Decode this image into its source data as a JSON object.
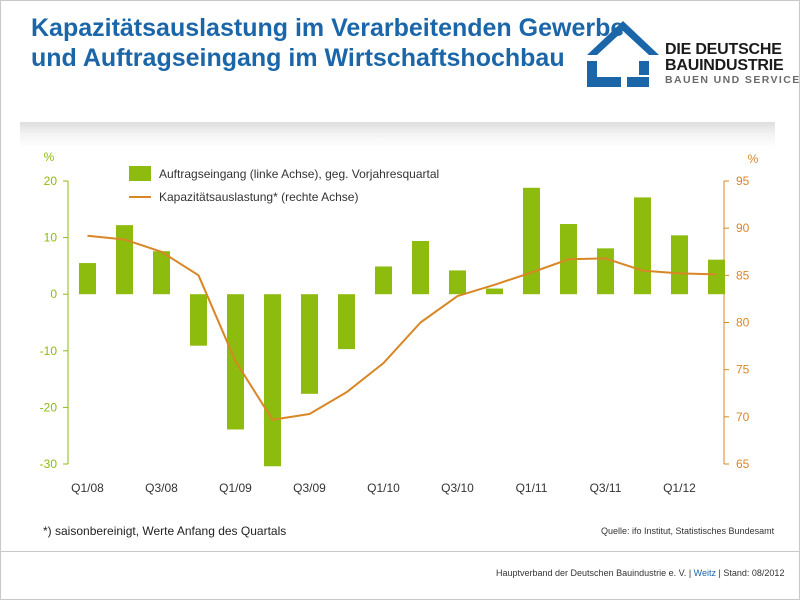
{
  "header": {
    "title_line1": "Kapazitätsauslastung im Verarbeitenden Gewerbe",
    "title_line2": "und Auftragseingang im Wirtschaftshochbau"
  },
  "logo": {
    "line1": "DIE DEUTSCHE",
    "line2": "BAUINDUSTRIE",
    "line3": "BAUEN UND SERVICES"
  },
  "colors": {
    "title": "#1a66a8",
    "bars": "#8dbb0e",
    "line": "#d98625",
    "left_axis": "#8dbb0e",
    "right_axis": "#d98625",
    "logo": "#1a66a8"
  },
  "chart_data": {
    "type": "bar",
    "left_unit": "%",
    "right_unit": "%",
    "left_ylim": [
      -30,
      20
    ],
    "left_yticks": [
      20,
      10,
      0,
      -10,
      -20,
      -30
    ],
    "right_ylim": [
      65,
      95
    ],
    "right_yticks": [
      95,
      90,
      85,
      80,
      75,
      70,
      65
    ],
    "x_tick_labels": [
      "Q1/08",
      "Q3/08",
      "Q1/09",
      "Q3/09",
      "Q1/10",
      "Q3/10",
      "Q1/11",
      "Q3/11",
      "Q1/12"
    ],
    "categories": [
      "Q1/08",
      "Q2/08",
      "Q3/08",
      "Q4/08",
      "Q1/09",
      "Q2/09",
      "Q3/09",
      "Q4/09",
      "Q1/10",
      "Q2/10",
      "Q3/10",
      "Q4/10",
      "Q1/11",
      "Q2/11",
      "Q3/11",
      "Q4/11",
      "Q1/12",
      "Q2/12"
    ],
    "legend_position": "top-left",
    "series": [
      {
        "name": "Auftragseingang (linke Achse), geg. Vorjahresquartal",
        "type": "bar",
        "axis": "left",
        "values": [
          5.5,
          12.2,
          7.6,
          -9.1,
          -23.9,
          -30.4,
          -17.6,
          -9.7,
          4.9,
          9.4,
          4.2,
          1.0,
          18.8,
          12.4,
          8.1,
          17.1,
          10.4,
          6.1
        ]
      },
      {
        "name": "Kapazitätsauslastung* (rechte Achse)",
        "type": "line",
        "axis": "right",
        "values": [
          89.2,
          88.8,
          87.5,
          85.0,
          75.9,
          69.7,
          70.3,
          72.6,
          75.7,
          80.0,
          82.8,
          84.0,
          85.3,
          86.7,
          86.8,
          85.5,
          85.2,
          85.1
        ]
      }
    ]
  },
  "footnote": "*) saisonbereinigt, Werte Anfang des Quartals",
  "source": "Quelle: ifo Institut, Statistisches Bundesamt",
  "footer": {
    "org": "Hauptverband der Deutschen Bauindustrie e. V.",
    "sep1": "|",
    "author": "Weitz",
    "sep2": "|",
    "stand": "Stand: 08/2012"
  }
}
